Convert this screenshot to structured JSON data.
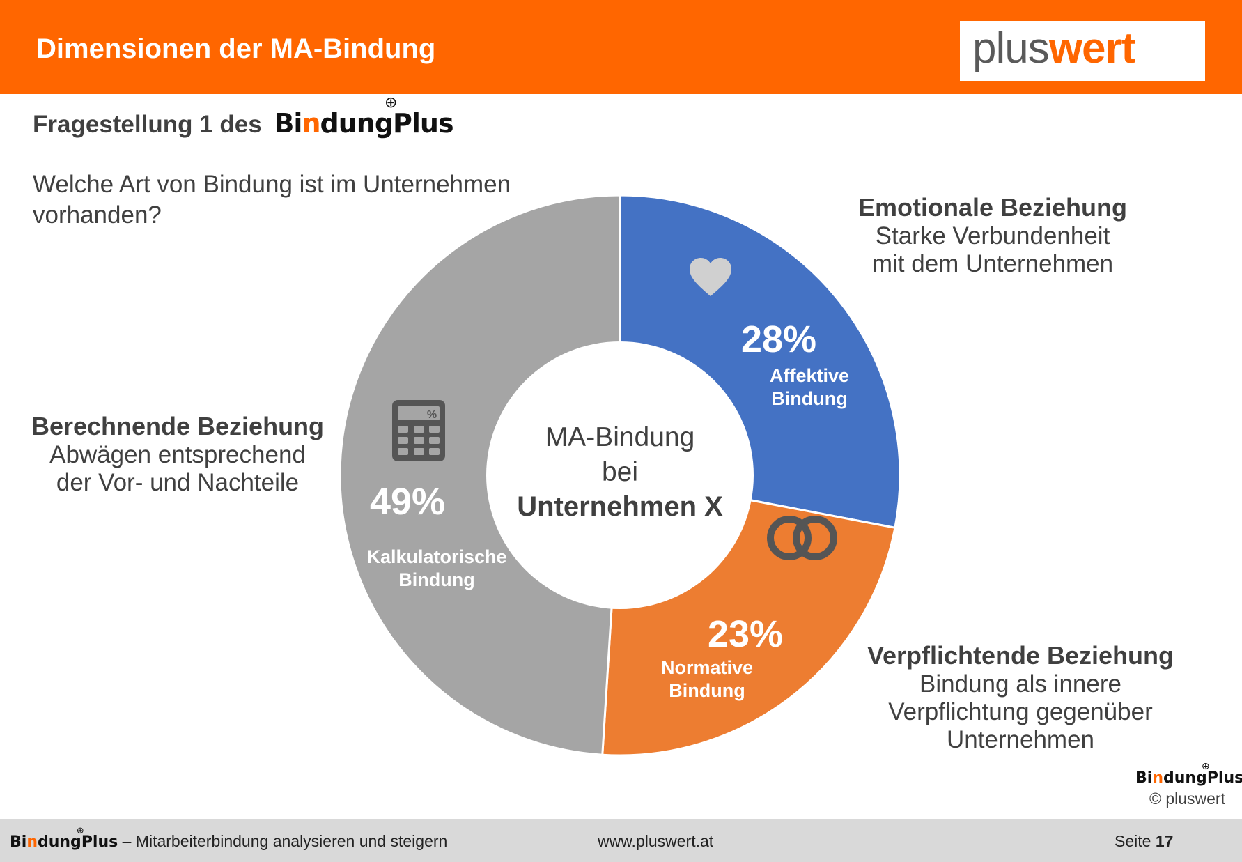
{
  "header": {
    "title": "Dimensionen der MA-Bindung",
    "logo_plus": "plus",
    "logo_wert": "wert",
    "color": "#FF6600"
  },
  "subtitle": {
    "prefix": "Fragestellung 1 des",
    "brand_b": "Bi",
    "brand_n": "n",
    "brand_rest": "dung",
    "brand_plus": "Plus"
  },
  "question": "Welche Art von Bindung ist im Unternehmen vorhanden?",
  "chart_data": {
    "type": "pie",
    "donut": true,
    "center_label": [
      "MA-Bindung",
      "bei",
      "Unternehmen X"
    ],
    "slices": [
      {
        "label": "Affektive Bindung",
        "label_lines": [
          "Affektive",
          "Bindung"
        ],
        "value": 28,
        "value_label": "28%",
        "color": "#4472C4",
        "icon": "heart-icon"
      },
      {
        "label": "Normative Bindung",
        "label_lines": [
          "Normative",
          "Bindung"
        ],
        "value": 23,
        "value_label": "23%",
        "color": "#ED7D31",
        "icon": "rings-icon"
      },
      {
        "label": "Kalkulatorische Bindung",
        "label_lines": [
          "Kalkulatorische",
          "Bindung"
        ],
        "value": 49,
        "value_label": "49%",
        "color": "#A5A5A5",
        "icon": "calculator-icon"
      }
    ]
  },
  "annotations": {
    "emotional": {
      "title": "Emotionale Beziehung",
      "lines": [
        "Starke Verbundenheit",
        "mit dem Unternehmen"
      ]
    },
    "calculating": {
      "title": "Berechnende Beziehung",
      "lines": [
        "Abwägen entsprechend",
        "der Vor- und Nachteile"
      ]
    },
    "obligating": {
      "title": "Verpflichtende Beziehung",
      "lines": [
        "Bindung als innere",
        "Verpflichtung gegenüber",
        "Unternehmen"
      ]
    }
  },
  "corner": {
    "brand_b": "Bi",
    "brand_n": "n",
    "brand_rest": "dung",
    "brand_plus": "Plus",
    "copyright": "© pluswert"
  },
  "footer": {
    "brand_b": "Bi",
    "brand_n": "n",
    "brand_rest": "dung",
    "brand_plus": "Plus",
    "tagline": " – Mitarbeiterbindung analysieren und steigern",
    "url": "www.pluswert.at",
    "page_label": "Seite",
    "page_number": "17"
  }
}
